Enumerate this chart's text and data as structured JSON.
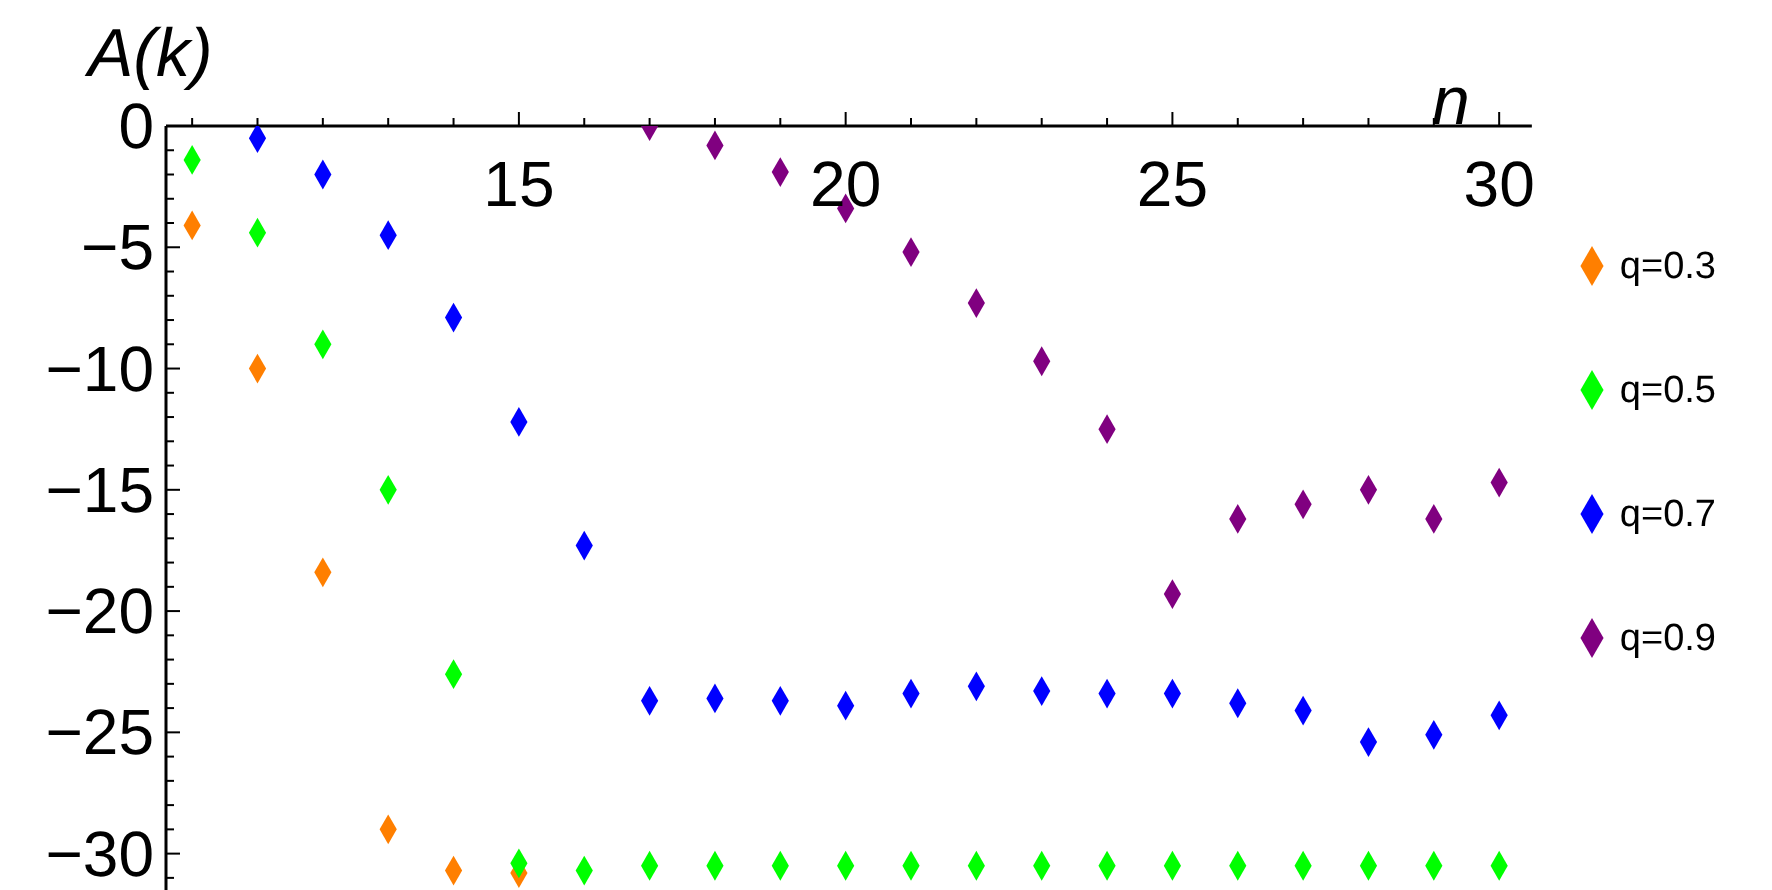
{
  "chart_data": {
    "type": "scatter",
    "xlabel": "n",
    "ylabel": "A(k)",
    "x": [
      10,
      11,
      12,
      13,
      14,
      15,
      16,
      17,
      18,
      19,
      20,
      21,
      22,
      23,
      24,
      25,
      26,
      27,
      28,
      29,
      30
    ],
    "series": [
      {
        "name": "q=0.3",
        "color": "#ff7f00",
        "values": [
          -4.1,
          -10.0,
          -18.4,
          -29.0,
          -30.7,
          -30.8,
          null,
          null,
          null,
          null,
          null,
          null,
          null,
          null,
          null,
          null,
          null,
          null,
          null,
          null,
          null
        ]
      },
      {
        "name": "q=0.5",
        "color": "#00ff00",
        "values": [
          -1.4,
          -4.4,
          -9.0,
          -15.0,
          -22.6,
          -30.4,
          -30.7,
          -30.5,
          -30.5,
          -30.5,
          -30.5,
          -30.5,
          -30.5,
          -30.5,
          -30.5,
          -30.5,
          -30.5,
          -30.5,
          -30.5,
          -30.5,
          -30.5
        ]
      },
      {
        "name": "q=0.7",
        "color": "#0000ff",
        "values": [
          null,
          -0.5,
          -2.0,
          -4.5,
          -7.9,
          -12.2,
          -17.3,
          -23.7,
          -23.6,
          -23.7,
          -23.9,
          -23.4,
          -23.1,
          -23.3,
          -23.4,
          -23.4,
          -23.8,
          -24.1,
          -25.4,
          -25.1,
          -24.3
        ]
      },
      {
        "name": "q=0.9",
        "color": "#800080",
        "values": [
          null,
          null,
          null,
          null,
          null,
          null,
          null,
          0.0,
          -0.8,
          -1.9,
          -3.4,
          -5.2,
          -7.3,
          -9.7,
          -12.5,
          -19.3,
          -16.2,
          -15.6,
          -15.0,
          -16.2,
          -14.7
        ]
      }
    ],
    "xlim": [
      9.6,
      30.5
    ],
    "xticks": [
      {
        "value": 10,
        "label": null
      },
      {
        "value": 11,
        "label": null
      },
      {
        "value": 12,
        "label": null
      },
      {
        "value": 13,
        "label": null
      },
      {
        "value": 14,
        "label": null
      },
      15,
      {
        "value": 16,
        "label": null
      },
      {
        "value": 17,
        "label": null
      },
      {
        "value": 18,
        "label": null
      },
      {
        "value": 19,
        "label": null
      },
      20,
      {
        "value": 21,
        "label": null
      },
      {
        "value": 22,
        "label": null
      },
      {
        "value": 23,
        "label": null
      },
      {
        "value": 24,
        "label": null
      },
      25,
      {
        "value": 26,
        "label": null
      },
      {
        "value": 27,
        "label": null
      },
      {
        "value": 28,
        "label": null
      },
      {
        "value": 29,
        "label": null
      },
      30
    ],
    "ylim": [
      -31.5,
      0
    ],
    "yticks": [
      0,
      {
        "value": -1,
        "label": null
      },
      {
        "value": -2,
        "label": null
      },
      {
        "value": -3,
        "label": null
      },
      {
        "value": -4,
        "label": null
      },
      -5,
      {
        "value": -6,
        "label": null
      },
      {
        "value": -7,
        "label": null
      },
      {
        "value": -8,
        "label": null
      },
      {
        "value": -9,
        "label": null
      },
      -10,
      {
        "value": -11,
        "label": null
      },
      {
        "value": -12,
        "label": null
      },
      {
        "value": -13,
        "label": null
      },
      {
        "value": -14,
        "label": null
      },
      -15,
      {
        "value": -16,
        "label": null
      },
      {
        "value": -17,
        "label": null
      },
      {
        "value": -18,
        "label": null
      },
      {
        "value": -19,
        "label": null
      },
      -20,
      {
        "value": -21,
        "label": null
      },
      {
        "value": -22,
        "label": null
      },
      {
        "value": -23,
        "label": null
      },
      {
        "value": -24,
        "label": null
      },
      -25,
      {
        "value": -26,
        "label": null
      },
      {
        "value": -27,
        "label": null
      },
      {
        "value": -28,
        "label": null
      },
      {
        "value": -29,
        "label": null
      },
      -30,
      {
        "value": -31,
        "label": null
      }
    ],
    "grid": false,
    "legend": "right",
    "marker": "diamond"
  }
}
